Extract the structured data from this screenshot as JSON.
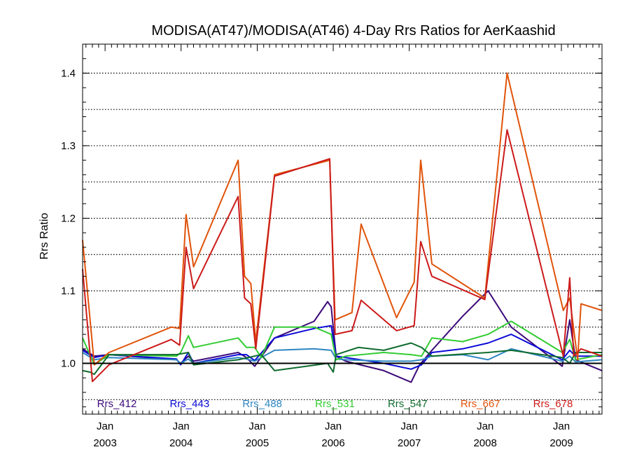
{
  "chart_data": {
    "type": "line",
    "title": "MODISA(AT47)/MODISA(AT46) 4-Day Rrs Ratios for AerKaashid",
    "xlabel": "",
    "ylabel": "Rrs Ratio",
    "xlim": [
      "2002-09-15",
      "2009-07-15"
    ],
    "ylim": [
      0.93,
      1.44
    ],
    "y_ticks": [
      "1.0",
      "1.1",
      "1.2",
      "1.3",
      "1.4"
    ],
    "y_gridlines": [
      0.95,
      1.0,
      1.05,
      1.1,
      1.15,
      1.2,
      1.25,
      1.3,
      1.35,
      1.4
    ],
    "reference_line": 1.0,
    "grid": "horizontal dotted",
    "x_ticks": [
      {
        "month": "Jan",
        "year": "2003",
        "date": "2003-01-01"
      },
      {
        "month": "Jan",
        "year": "2004",
        "date": "2004-01-01"
      },
      {
        "month": "Jan",
        "year": "2005",
        "date": "2005-01-01"
      },
      {
        "month": "Jan",
        "year": "2006",
        "date": "2006-01-01"
      },
      {
        "month": "Jan",
        "year": "2007",
        "date": "2007-01-01"
      },
      {
        "month": "Jan",
        "year": "2008",
        "date": "2008-01-01"
      },
      {
        "month": "Jan",
        "year": "2009",
        "date": "2009-01-01"
      }
    ],
    "legend_position": "bottom, inside plot",
    "series": [
      {
        "name": "Rrs_412",
        "color": "#3d0a7a",
        "points": [
          [
            "2002-09-15",
            1.02
          ],
          [
            "2002-11-10",
            1.01
          ],
          [
            "2003-01-20",
            1.012
          ],
          [
            "2003-12-10",
            1.005
          ],
          [
            "2003-12-30",
            1.0
          ],
          [
            "2004-02-05",
            1.01
          ],
          [
            "2004-03-01",
            1.003
          ],
          [
            "2004-10-01",
            1.015
          ],
          [
            "2004-11-10",
            1.008
          ],
          [
            "2004-12-20",
            0.996
          ],
          [
            "2005-03-25",
            1.035
          ],
          [
            "2005-10-01",
            1.058
          ],
          [
            "2005-12-05",
            1.085
          ],
          [
            "2005-12-22",
            1.078
          ],
          [
            "2006-01-15",
            1.01
          ],
          [
            "2006-03-01",
            1.003
          ],
          [
            "2006-09-01",
            0.99
          ],
          [
            "2007-01-10",
            0.974
          ],
          [
            "2007-02-20",
            0.998
          ],
          [
            "2007-04-20",
            1.018
          ],
          [
            "2007-09-15",
            1.065
          ],
          [
            "2008-01-15",
            1.1
          ],
          [
            "2008-05-05",
            1.05
          ],
          [
            "2009-01-05",
            0.996
          ],
          [
            "2009-02-10",
            1.06
          ],
          [
            "2009-03-10",
            1.005
          ],
          [
            "2009-07-15",
            0.99
          ]
        ]
      },
      {
        "name": "Rrs_443",
        "color": "#0a0ad8",
        "points": [
          [
            "2002-09-15",
            1.018
          ],
          [
            "2002-11-10",
            1.008
          ],
          [
            "2003-01-20",
            1.012
          ],
          [
            "2003-12-10",
            1.006
          ],
          [
            "2003-12-30",
            0.998
          ],
          [
            "2004-02-05",
            1.015
          ],
          [
            "2004-03-01",
            1.0
          ],
          [
            "2004-10-01",
            1.012
          ],
          [
            "2004-11-10",
            1.012
          ],
          [
            "2004-12-20",
            1.004
          ],
          [
            "2005-03-25",
            1.035
          ],
          [
            "2005-10-01",
            1.048
          ],
          [
            "2005-12-22",
            1.052
          ],
          [
            "2006-01-15",
            1.01
          ],
          [
            "2006-03-01",
            1.008
          ],
          [
            "2006-09-01",
            1.0
          ],
          [
            "2007-01-10",
            0.992
          ],
          [
            "2007-03-01",
            0.998
          ],
          [
            "2007-04-20",
            1.015
          ],
          [
            "2007-09-15",
            1.02
          ],
          [
            "2008-01-15",
            1.028
          ],
          [
            "2008-05-05",
            1.04
          ],
          [
            "2009-01-05",
            1.005
          ],
          [
            "2009-02-10",
            1.018
          ],
          [
            "2009-03-10",
            1.01
          ],
          [
            "2009-07-15",
            1.01
          ]
        ]
      },
      {
        "name": "Rrs_488",
        "color": "#2e86c1",
        "points": [
          [
            "2002-09-15",
            1.015
          ],
          [
            "2002-11-10",
            1.005
          ],
          [
            "2003-01-20",
            1.008
          ],
          [
            "2003-12-10",
            1.005
          ],
          [
            "2003-12-30",
            1.0
          ],
          [
            "2004-02-05",
            1.006
          ],
          [
            "2004-03-01",
            1.0
          ],
          [
            "2004-10-01",
            1.008
          ],
          [
            "2004-11-10",
            1.006
          ],
          [
            "2004-12-20",
            1.003
          ],
          [
            "2005-03-25",
            1.018
          ],
          [
            "2005-10-01",
            1.02
          ],
          [
            "2005-12-22",
            1.018
          ],
          [
            "2006-01-15",
            1.006
          ],
          [
            "2006-03-01",
            1.005
          ],
          [
            "2006-09-01",
            1.003
          ],
          [
            "2007-01-10",
            1.003
          ],
          [
            "2007-03-01",
            1.005
          ],
          [
            "2007-04-20",
            1.01
          ],
          [
            "2007-09-15",
            1.012
          ],
          [
            "2008-01-15",
            1.005
          ],
          [
            "2008-05-05",
            1.02
          ],
          [
            "2009-01-05",
            1.003
          ],
          [
            "2009-02-10",
            1.01
          ],
          [
            "2009-03-10",
            1.002
          ],
          [
            "2009-07-15",
            1.005
          ]
        ]
      },
      {
        "name": "Rrs_531",
        "color": "#33cc33",
        "points": [
          [
            "2002-09-15",
            1.035
          ],
          [
            "2002-11-10",
            0.998
          ],
          [
            "2003-01-20",
            1.012
          ],
          [
            "2003-12-10",
            1.01
          ],
          [
            "2003-12-30",
            1.015
          ],
          [
            "2004-02-05",
            1.038
          ],
          [
            "2004-03-01",
            1.022
          ],
          [
            "2004-10-01",
            1.035
          ],
          [
            "2004-11-10",
            1.022
          ],
          [
            "2004-12-20",
            1.022
          ],
          [
            "2005-01-20",
            1.008
          ],
          [
            "2005-03-25",
            1.05
          ],
          [
            "2005-10-01",
            1.05
          ],
          [
            "2005-12-22",
            1.04
          ],
          [
            "2006-01-15",
            1.005
          ],
          [
            "2006-03-01",
            1.01
          ],
          [
            "2006-09-01",
            1.015
          ],
          [
            "2007-01-10",
            1.012
          ],
          [
            "2007-03-01",
            1.01
          ],
          [
            "2007-04-20",
            1.035
          ],
          [
            "2007-09-15",
            1.03
          ],
          [
            "2008-01-15",
            1.04
          ],
          [
            "2008-05-05",
            1.058
          ],
          [
            "2009-01-05",
            1.015
          ],
          [
            "2009-02-10",
            1.033
          ],
          [
            "2009-03-10",
            1.005
          ],
          [
            "2009-07-15",
            1.012
          ]
        ]
      },
      {
        "name": "Rrs_547",
        "color": "#0f6b2e",
        "points": [
          [
            "2002-09-15",
            0.99
          ],
          [
            "2002-10-20",
            0.988
          ],
          [
            "2002-11-10",
            0.985
          ],
          [
            "2003-01-20",
            1.012
          ],
          [
            "2003-12-10",
            1.012
          ],
          [
            "2004-02-05",
            1.015
          ],
          [
            "2004-03-01",
            0.998
          ],
          [
            "2004-10-01",
            1.005
          ],
          [
            "2005-01-20",
            1.012
          ],
          [
            "2005-03-25",
            0.99
          ],
          [
            "2005-12-05",
            1.0
          ],
          [
            "2006-01-01",
            0.988
          ],
          [
            "2006-01-15",
            1.012
          ],
          [
            "2006-05-01",
            1.022
          ],
          [
            "2006-09-01",
            1.018
          ],
          [
            "2007-01-10",
            1.028
          ],
          [
            "2007-03-01",
            1.022
          ],
          [
            "2007-04-20",
            1.01
          ],
          [
            "2008-01-15",
            1.015
          ],
          [
            "2008-05-05",
            1.018
          ],
          [
            "2009-01-05",
            1.008
          ],
          [
            "2009-02-10",
            1.0
          ],
          [
            "2009-03-10",
            1.015
          ],
          [
            "2009-07-15",
            1.015
          ]
        ]
      },
      {
        "name": "Rrs_667",
        "color": "#e0530a",
        "points": [
          [
            "2002-09-15",
            1.17
          ],
          [
            "2002-11-10",
            0.998
          ],
          [
            "2003-01-20",
            1.015
          ],
          [
            "2003-11-15",
            1.05
          ],
          [
            "2003-12-25",
            1.048
          ],
          [
            "2004-01-25",
            1.205
          ],
          [
            "2004-03-01",
            1.133
          ],
          [
            "2004-10-01",
            1.28
          ],
          [
            "2004-11-01",
            1.12
          ],
          [
            "2004-12-01",
            1.11
          ],
          [
            "2004-12-25",
            1.03
          ],
          [
            "2005-03-25",
            1.26
          ],
          [
            "2005-12-15",
            1.28
          ],
          [
            "2006-01-10",
            1.06
          ],
          [
            "2006-04-01",
            1.07
          ],
          [
            "2006-05-15",
            1.192
          ],
          [
            "2006-11-01",
            1.063
          ],
          [
            "2007-01-25",
            1.112
          ],
          [
            "2007-02-25",
            1.28
          ],
          [
            "2007-04-20",
            1.137
          ],
          [
            "2007-12-30",
            1.09
          ],
          [
            "2008-04-15",
            1.4
          ],
          [
            "2009-01-10",
            1.073
          ],
          [
            "2009-02-10",
            1.09
          ],
          [
            "2009-03-20",
            1.005
          ],
          [
            "2009-04-05",
            1.082
          ],
          [
            "2009-07-15",
            1.073
          ]
        ]
      },
      {
        "name": "Rrs_678",
        "color": "#cc1a1a",
        "points": [
          [
            "2002-09-15",
            1.13
          ],
          [
            "2002-11-01",
            0.975
          ],
          [
            "2003-01-20",
            0.998
          ],
          [
            "2003-11-15",
            1.033
          ],
          [
            "2003-12-25",
            1.025
          ],
          [
            "2004-01-25",
            1.16
          ],
          [
            "2004-03-01",
            1.103
          ],
          [
            "2004-10-01",
            1.23
          ],
          [
            "2004-11-01",
            1.09
          ],
          [
            "2004-12-01",
            1.082
          ],
          [
            "2004-12-25",
            1.02
          ],
          [
            "2005-03-25",
            1.258
          ],
          [
            "2005-12-15",
            1.282
          ],
          [
            "2006-01-10",
            1.04
          ],
          [
            "2006-04-01",
            1.045
          ],
          [
            "2006-05-15",
            1.087
          ],
          [
            "2006-11-01",
            1.045
          ],
          [
            "2007-01-25",
            1.052
          ],
          [
            "2007-02-25",
            1.168
          ],
          [
            "2007-04-20",
            1.12
          ],
          [
            "2007-12-30",
            1.088
          ],
          [
            "2008-04-15",
            1.322
          ],
          [
            "2009-01-10",
            1.01
          ],
          [
            "2009-02-10",
            1.118
          ],
          [
            "2009-03-01",
            1.01
          ],
          [
            "2009-04-05",
            1.02
          ],
          [
            "2009-07-15",
            1.01
          ]
        ]
      }
    ]
  }
}
